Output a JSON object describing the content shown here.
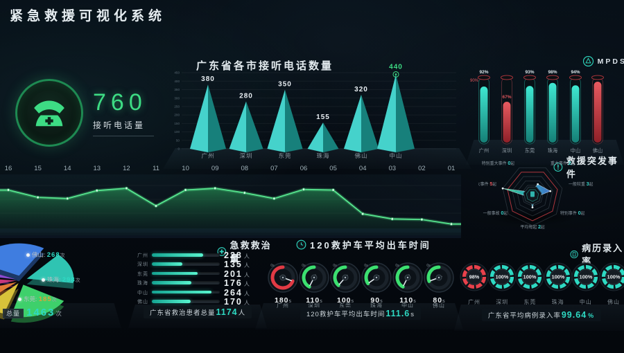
{
  "header": {
    "title": "紧急救援可视化系统"
  },
  "colors": {
    "accent": "#3ddc84",
    "teal": "#2ed9c3",
    "red": "#e0444a",
    "dim": "#8a97a0"
  },
  "chart_data": [
    {
      "id": "answered-calls",
      "type": "stat",
      "value": "760",
      "label": "接听电话量"
    },
    {
      "id": "city-calls",
      "type": "bar",
      "style": "pyramid",
      "title": "广东省各市接听电话数量",
      "categories": [
        "广州",
        "深圳",
        "东莞",
        "珠海",
        "佛山",
        "中山"
      ],
      "values": [
        380,
        280,
        350,
        155,
        320,
        440
      ],
      "ylim": [
        0,
        450
      ],
      "yticks": [
        450,
        400,
        350,
        300,
        250,
        200,
        150,
        100,
        50,
        0
      ],
      "highlight_index": 5,
      "highlight_color": "#3ddc84"
    },
    {
      "id": "mpds-rate",
      "type": "bar",
      "style": "tube",
      "legend": "MPDS",
      "threshold_label": "90%",
      "categories": [
        "广州",
        "深圳",
        "东莞",
        "珠海",
        "中山",
        "佛山"
      ],
      "values": [
        92,
        67,
        93,
        98,
        94,
        100
      ],
      "labels": [
        "92%",
        "67%",
        "93%",
        "98%",
        "94%",
        ""
      ],
      "colors": [
        "teal",
        "red",
        "teal",
        "teal",
        "teal",
        "red"
      ]
    },
    {
      "id": "hourly-trend",
      "type": "area",
      "x": [
        "16",
        "15",
        "14",
        "13",
        "12",
        "11",
        "10",
        "09",
        "08",
        "07",
        "06",
        "05",
        "04",
        "03",
        "02",
        "01"
      ],
      "values": [
        75,
        62,
        60,
        74,
        78,
        47,
        75,
        78,
        70,
        60,
        76,
        75,
        33,
        24,
        23,
        15
      ],
      "ylim": [
        0,
        100
      ]
    },
    {
      "id": "incidents",
      "type": "radar",
      "title": "救援突发事件",
      "max": 5,
      "axes": [
        {
          "label": "平均每起",
          "value": 2,
          "unit": "起",
          "color": "teal"
        },
        {
          "label": "一般事故",
          "value": 0,
          "unit": "起",
          "color": "teal"
        },
        {
          "label": "较大事件",
          "value": 5,
          "unit": "起",
          "color": "red"
        },
        {
          "label": "特别重大事件",
          "value": 0,
          "unit": "起",
          "color": "teal"
        },
        {
          "label": "重大事件",
          "value": 2,
          "unit": "起",
          "color": "teal"
        },
        {
          "label": "一般较重",
          "value": 3,
          "unit": "起",
          "color": "teal"
        },
        {
          "label": "特别事件",
          "value": 0,
          "unit": "起",
          "color": "teal"
        }
      ]
    },
    {
      "id": "city-share",
      "type": "pie",
      "slices": [
        {
          "label": "佛山",
          "value": 268,
          "value_text": "268",
          "unit": "次",
          "color": "#3f7de0",
          "value_color": "#2ed9c3",
          "start": -155,
          "end": -58
        },
        {
          "label": "珠海",
          "value": 298,
          "value_text": "298",
          "unit": "次",
          "color": "#2fc4b2",
          "value_color": "#2ed9c3",
          "start": -48,
          "end": 8
        },
        {
          "label": "东莞",
          "value": 185,
          "value_text": "185",
          "unit": "次",
          "color": "#3ed06b",
          "value_color": "#d8a43a",
          "start": 30,
          "end": 105
        },
        {
          "label": "",
          "value_text": "",
          "color": "#d8c23a",
          "start": 108,
          "end": 135
        },
        {
          "label": "",
          "value_text": "",
          "color": "#e07b35",
          "start": 138,
          "end": 162
        },
        {
          "label": "",
          "value_text": "",
          "color": "#c8377e",
          "start": 165,
          "end": 186
        },
        {
          "label": "",
          "value_text": "",
          "color": "#8a4ad0",
          "start": 189,
          "end": 203
        }
      ],
      "total_label": "总量",
      "total_value": "1463",
      "total_unit": "次"
    },
    {
      "id": "treated",
      "type": "bar",
      "title": "急救救治量",
      "unit": "人",
      "max": 300,
      "categories": [
        "广州",
        "深圳",
        "东莞",
        "珠海",
        "中山",
        "佛山"
      ],
      "values": [
        228,
        135,
        201,
        176,
        264,
        170
      ],
      "footer_label": "广东省救治患者总量",
      "footer_value": "1174",
      "footer_unit": "人"
    },
    {
      "id": "dispatch-time",
      "type": "gauge",
      "title": "120救护车平均出车时间",
      "zero_label": "0s",
      "max": 180,
      "unit": "s",
      "categories": [
        "广州",
        "深圳",
        "东莞",
        "珠海",
        "中山",
        "佛山"
      ],
      "values": [
        180,
        110,
        100,
        90,
        110,
        80
      ],
      "colors": [
        "red",
        "green",
        "green",
        "green",
        "green",
        "green"
      ],
      "footer_label": "120救护车平均出车时间",
      "footer_value": "111.6",
      "footer_unit": "s"
    },
    {
      "id": "record-rate",
      "type": "donut",
      "title": "病历录入率",
      "unit": "%",
      "categories": [
        "广州",
        "深圳",
        "东莞",
        "珠海",
        "中山",
        "佛山"
      ],
      "values": [
        98,
        100,
        100,
        100,
        100,
        100
      ],
      "colors": [
        "red",
        "teal",
        "teal",
        "teal",
        "teal",
        "teal"
      ],
      "footer_label": "广东省平均病例录入率",
      "footer_value": "99.64",
      "footer_unit": "%"
    }
  ]
}
